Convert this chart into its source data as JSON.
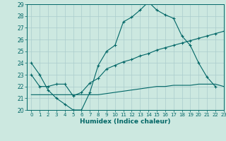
{
  "xlabel": "Humidex (Indice chaleur)",
  "ylabel": "",
  "xlim": [
    -0.5,
    23
  ],
  "ylim": [
    20,
    29
  ],
  "xticks": [
    0,
    1,
    2,
    3,
    4,
    5,
    6,
    7,
    8,
    9,
    10,
    11,
    12,
    13,
    14,
    15,
    16,
    17,
    18,
    19,
    20,
    21,
    22,
    23
  ],
  "yticks": [
    20,
    21,
    22,
    23,
    24,
    25,
    26,
    27,
    28,
    29
  ],
  "background_color": "#cce8e0",
  "grid_color": "#aacccc",
  "line_color": "#006666",
  "line1_x": [
    0,
    1,
    2,
    3,
    4,
    5,
    6,
    7,
    8,
    9,
    10,
    11,
    12,
    13,
    14,
    15,
    16,
    17,
    18,
    19,
    20,
    21,
    22
  ],
  "line1_y": [
    24,
    23,
    21.7,
    21,
    20.5,
    20.0,
    20.0,
    21.5,
    23.8,
    25.0,
    25.5,
    27.5,
    27.9,
    28.5,
    29.2,
    28.5,
    28.1,
    27.8,
    26.3,
    25.5,
    24.0,
    22.8,
    22.0
  ],
  "line2_x": [
    0,
    1,
    2,
    3,
    4,
    5,
    6,
    7,
    8,
    9,
    10,
    11,
    12,
    13,
    14,
    15,
    16,
    17,
    18,
    19,
    20,
    21,
    22,
    23
  ],
  "line2_y": [
    23.0,
    22.0,
    22.0,
    22.2,
    22.2,
    21.2,
    21.5,
    22.3,
    22.7,
    23.5,
    23.8,
    24.1,
    24.3,
    24.6,
    24.8,
    25.1,
    25.3,
    25.5,
    25.7,
    25.9,
    26.1,
    26.3,
    26.5,
    26.7
  ],
  "line3_x": [
    0,
    1,
    2,
    3,
    4,
    5,
    6,
    7,
    8,
    9,
    10,
    11,
    12,
    13,
    14,
    15,
    16,
    17,
    18,
    19,
    20,
    21,
    22,
    23
  ],
  "line3_y": [
    21.3,
    21.3,
    21.3,
    21.3,
    21.3,
    21.3,
    21.3,
    21.3,
    21.3,
    21.4,
    21.5,
    21.6,
    21.7,
    21.8,
    21.9,
    22.0,
    22.0,
    22.1,
    22.1,
    22.1,
    22.2,
    22.2,
    22.2,
    22.0
  ]
}
